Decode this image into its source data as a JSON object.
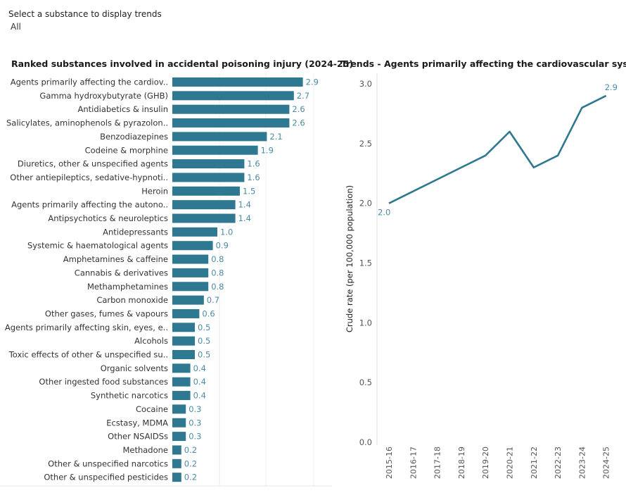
{
  "filter": {
    "label": "Select a substance to display trends",
    "value": "All"
  },
  "chart_data": [
    {
      "type": "bar",
      "orientation": "horizontal",
      "title": "Ranked substances involved in accidental poisoning injury (2024-25)",
      "bar_color": "#2e7891",
      "label_color": "#4b8ba5",
      "categories": [
        "Agents primarily affecting the cardiov..",
        "Gamma hydroxybutyrate (GHB)",
        "Antidiabetics & insulin",
        "Salicylates, aminophenols & pyrazolon..",
        "Benzodiazepines",
        "Codeine & morphine",
        "Diuretics, other & unspecified agents",
        "Other antiepileptics, sedative-hypnoti..",
        "Heroin",
        "Agents primarily affecting the autono..",
        "Antipsychotics & neuroleptics",
        "Antidepressants",
        "Systemic & haematological agents",
        "Amphetamines & caffeine",
        "Cannabis & derivatives",
        "Methamphetamines",
        "Carbon monoxide",
        "Other gases, fumes & vapours",
        "Agents primarily affecting skin, eyes, e..",
        "Alcohols",
        "Toxic effects of other & unspecified su..",
        "Organic solvents",
        "Other ingested food substances",
        "Synthetic narcotics",
        "Cocaine",
        "Ecstasy, MDMA",
        "Other NSAIDSs",
        "Methadone",
        "Other & unspecified narcotics",
        "Other & unspecified pesticides"
      ],
      "values": [
        2.9,
        2.7,
        2.6,
        2.6,
        2.1,
        1.9,
        1.6,
        1.6,
        1.5,
        1.4,
        1.4,
        1.0,
        0.9,
        0.8,
        0.8,
        0.8,
        0.7,
        0.6,
        0.5,
        0.5,
        0.5,
        0.4,
        0.4,
        0.4,
        0.3,
        0.3,
        0.3,
        0.2,
        0.2,
        0.2
      ],
      "data_labels": [
        "2.9",
        "2.7",
        "2.6",
        "2.6",
        "2.1",
        "1.9",
        "1.6",
        "1.6",
        "1.5",
        "1.4",
        "1.4",
        "1.0",
        "0.9",
        "0.8",
        "0.8",
        "0.8",
        "0.7",
        "0.6",
        "0.5",
        "0.5",
        "0.5",
        "0.4",
        "0.4",
        "0.4",
        "0.3",
        "0.3",
        "0.3",
        "0.2",
        "0.2",
        "0.2"
      ],
      "xlim": [
        0,
        3.0
      ]
    },
    {
      "type": "line",
      "title": "Trends - Agents primarily affecting the cardiovascular system",
      "ylabel": "Crude rate (per 100,000 population)",
      "line_color": "#2e7891",
      "label_color": "#4b8ba5",
      "x": [
        "2015-16",
        "2016-17",
        "2017-18",
        "2018-19",
        "2019-20",
        "2020-21",
        "2021-22",
        "2022-23",
        "2023-24",
        "2024-25"
      ],
      "values": [
        2.0,
        2.1,
        2.2,
        2.3,
        2.4,
        2.6,
        2.3,
        2.4,
        2.8,
        2.9
      ],
      "ylim": [
        0,
        3.0
      ],
      "yticks": [
        "0.0",
        "0.5",
        "1.0",
        "1.5",
        "2.0",
        "2.5",
        "3.0"
      ],
      "point_labels": [
        {
          "index": 0,
          "text": "2.0"
        },
        {
          "index": 9,
          "text": "2.9"
        }
      ]
    }
  ]
}
